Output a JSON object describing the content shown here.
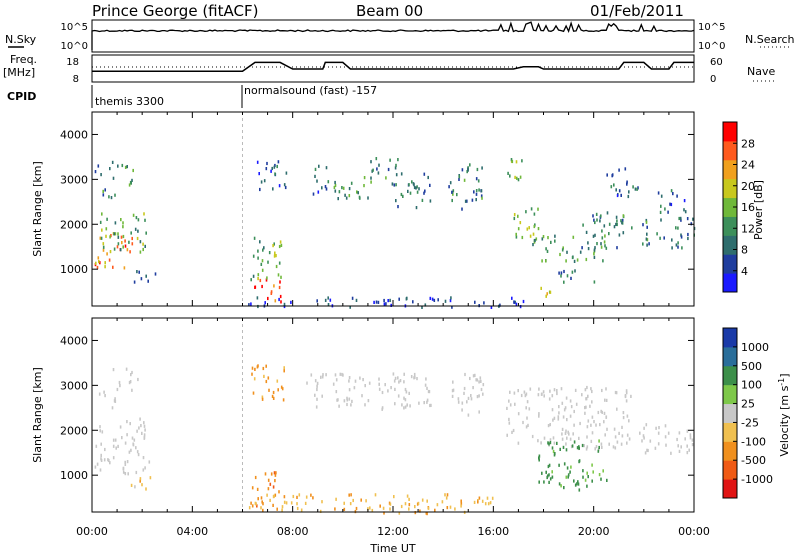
{
  "header": {
    "station": "Prince George (fitACF)",
    "beam": "Beam 00",
    "date": "01/Feb/2011"
  },
  "side_labels": {
    "nsky": "N.Sky",
    "nsearch": "N.Search",
    "freq": "Freq.",
    "freq_unit": "[MHz]",
    "nave": "Nave",
    "cpid": "CPID"
  },
  "noise_panel": {
    "left_ticks": [
      "10^5",
      "10^0"
    ],
    "right_ticks": [
      "10^5",
      "10^0"
    ]
  },
  "freq_panel": {
    "left_ticks": [
      "18",
      "8"
    ],
    "right_ticks": [
      "60",
      "0"
    ],
    "freq_steps": [
      [
        0,
        12
      ],
      [
        6,
        12
      ],
      [
        6.5,
        16
      ],
      [
        7.5,
        16
      ],
      [
        8,
        13
      ],
      [
        9.2,
        13
      ],
      [
        9.3,
        16
      ],
      [
        10,
        16
      ],
      [
        10.3,
        13
      ],
      [
        16.8,
        13
      ],
      [
        17.2,
        14
      ],
      [
        17.8,
        14
      ],
      [
        18,
        13
      ],
      [
        21,
        13
      ],
      [
        21.2,
        16
      ],
      [
        22,
        16
      ],
      [
        22.3,
        13
      ],
      [
        23,
        13
      ],
      [
        23.2,
        16
      ],
      [
        24,
        16
      ]
    ]
  },
  "cpid_panel": {
    "segments": [
      {
        "start": 0,
        "label": "themis 3300"
      },
      {
        "start": 6,
        "label": "normalsound (fast) -157"
      }
    ]
  },
  "chart_data": [
    {
      "type": "heatmap",
      "name": "power",
      "ylabel": "Slant Range [km]",
      "y_ticks": [
        "1000",
        "2000",
        "3000",
        "4000"
      ],
      "ylim": [
        180,
        4500
      ],
      "colorbar": {
        "label": "Power [dB]",
        "ticks": [
          "4",
          "8",
          "12",
          "16",
          "20",
          "24",
          "28"
        ],
        "colors": [
          "#1a1aff",
          "#1f3d9e",
          "#2e6d6d",
          "#3c8f5a",
          "#6fb83a",
          "#c8c81e",
          "#f0a01e",
          "#ff5a1e",
          "#ff0000"
        ]
      },
      "regions": [
        {
          "x0": 0.1,
          "x1": 1.6,
          "y0": 1050,
          "y1": 1900,
          "v": 24
        },
        {
          "x0": 0.3,
          "x1": 2.2,
          "y0": 1400,
          "y1": 2300,
          "v": 14
        },
        {
          "x0": 0.2,
          "x1": 0.9,
          "y0": 2450,
          "y1": 2850,
          "v": 10
        },
        {
          "x0": 0.8,
          "x1": 1.7,
          "y0": 2900,
          "y1": 3400,
          "v": 12
        },
        {
          "x0": 1.5,
          "x1": 2.5,
          "y0": 700,
          "y1": 1000,
          "v": 8
        },
        {
          "x0": 0.1,
          "x1": 0.8,
          "y0": 3100,
          "y1": 3450,
          "v": 6
        },
        {
          "x0": 6.3,
          "x1": 7.6,
          "y0": 300,
          "y1": 800,
          "v": 26
        },
        {
          "x0": 6.3,
          "x1": 7.6,
          "y0": 800,
          "y1": 1800,
          "v": 14
        },
        {
          "x0": 6.5,
          "x1": 7.8,
          "y0": 2800,
          "y1": 3500,
          "v": 8
        },
        {
          "x0": 8.8,
          "x1": 9.5,
          "y0": 2700,
          "y1": 3400,
          "v": 8
        },
        {
          "x0": 9.6,
          "x1": 11.2,
          "y0": 2500,
          "y1": 3100,
          "v": 12
        },
        {
          "x0": 11.0,
          "x1": 12.2,
          "y0": 2900,
          "y1": 3500,
          "v": 10
        },
        {
          "x0": 12.0,
          "x1": 13.5,
          "y0": 2400,
          "y1": 3200,
          "v": 9
        },
        {
          "x0": 14.2,
          "x1": 15.6,
          "y0": 2300,
          "y1": 3400,
          "v": 10
        },
        {
          "x0": 16.5,
          "x1": 17.2,
          "y0": 2800,
          "y1": 3500,
          "v": 16
        },
        {
          "x0": 16.8,
          "x1": 17.8,
          "y0": 1700,
          "y1": 2600,
          "v": 16
        },
        {
          "x0": 17.5,
          "x1": 20.5,
          "y0": 1200,
          "y1": 1800,
          "v": 12
        },
        {
          "x0": 17.8,
          "x1": 18.5,
          "y0": 400,
          "y1": 700,
          "v": 20
        },
        {
          "x0": 18.5,
          "x1": 20.0,
          "y0": 700,
          "y1": 1000,
          "v": 9
        },
        {
          "x0": 19.5,
          "x1": 21.5,
          "y0": 1500,
          "y1": 2300,
          "v": 10
        },
        {
          "x0": 20.5,
          "x1": 21.8,
          "y0": 2600,
          "y1": 3300,
          "v": 7
        },
        {
          "x0": 21.8,
          "x1": 24.0,
          "y0": 1500,
          "y1": 2200,
          "v": 10
        },
        {
          "x0": 22.5,
          "x1": 23.8,
          "y0": 2300,
          "y1": 2800,
          "v": 8
        },
        {
          "x0": 6.0,
          "x1": 17.5,
          "y0": 180,
          "y1": 400,
          "v": 5
        }
      ]
    },
    {
      "type": "heatmap",
      "name": "velocity",
      "ylabel": "Slant Range [km]",
      "y_ticks": [
        "1000",
        "2000",
        "3000",
        "4000"
      ],
      "ylim": [
        180,
        4500
      ],
      "colorbar": {
        "label": "Velocity [m s",
        "label_sup": "-1",
        "label_end": "]",
        "ticks": [
          "1000",
          "500",
          "100",
          "25",
          "-25",
          "-100",
          "-500",
          "-1000"
        ],
        "colors": [
          "#1a3aa8",
          "#2a6e9a",
          "#3c8f4a",
          "#7ec84a",
          "#c8c8c8",
          "#f0c050",
          "#f0901e",
          "#f05a14",
          "#e01414"
        ]
      },
      "regions": [
        {
          "x0": 0.1,
          "x1": 2.3,
          "y0": 1050,
          "y1": 2300,
          "v": 0
        },
        {
          "x0": 0.2,
          "x1": 1.0,
          "y0": 2500,
          "y1": 2900,
          "v": 0
        },
        {
          "x0": 0.8,
          "x1": 1.8,
          "y0": 2900,
          "y1": 3400,
          "v": 0
        },
        {
          "x0": 1.5,
          "x1": 2.5,
          "y0": 700,
          "y1": 1000,
          "v": -60
        },
        {
          "x0": 6.3,
          "x1": 7.6,
          "y0": 350,
          "y1": 1100,
          "v": -400
        },
        {
          "x0": 6.3,
          "x1": 7.7,
          "y0": 2700,
          "y1": 3500,
          "v": -150
        },
        {
          "x0": 8.5,
          "x1": 13.5,
          "y0": 2500,
          "y1": 3300,
          "v": 0
        },
        {
          "x0": 14.2,
          "x1": 15.6,
          "y0": 2300,
          "y1": 3300,
          "v": 0
        },
        {
          "x0": 16.5,
          "x1": 21.5,
          "y0": 1600,
          "y1": 3000,
          "v": 0
        },
        {
          "x0": 17.7,
          "x1": 20.5,
          "y0": 700,
          "y1": 1800,
          "v": 150
        },
        {
          "x0": 21.8,
          "x1": 24.0,
          "y0": 1500,
          "y1": 2200,
          "v": 0
        },
        {
          "x0": 6.0,
          "x1": 16.0,
          "y0": 180,
          "y1": 600,
          "v": -80
        }
      ]
    }
  ],
  "xaxis": {
    "ticks": [
      "00:00",
      "04:00",
      "08:00",
      "12:00",
      "16:00",
      "20:00",
      "00:00"
    ],
    "label": "Time UT"
  }
}
